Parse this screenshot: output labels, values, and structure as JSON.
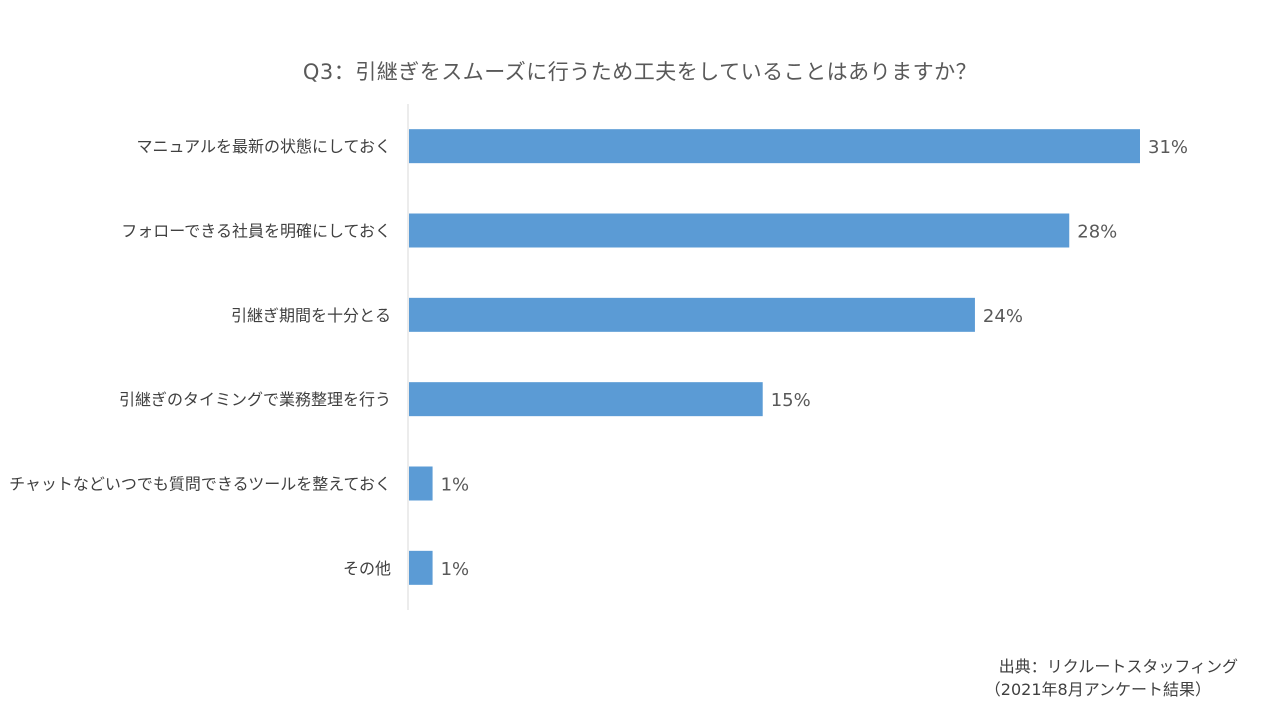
{
  "chart_data": {
    "type": "bar",
    "orientation": "horizontal",
    "title": "Q3：引継ぎをスムーズに行うため工夫をしていることはありますか？",
    "categories": [
      "マニュアルを最新の状態にしておく",
      "フォローできる社員を明確にしておく",
      "引継ぎ期間を十分とる",
      "引継ぎのタイミングで業務整理を行う",
      "チャットなどいつでも質問できるツールを整えておく",
      "その他"
    ],
    "values": [
      31,
      28,
      24,
      15,
      1,
      1
    ],
    "data_labels": [
      "31%",
      "28%",
      "24%",
      "15%",
      "1%",
      "1%"
    ],
    "unit": "%",
    "xlim": [
      0,
      31
    ],
    "grid": false,
    "bar_color": "#5b9bd5",
    "axis_color": "#d9d9d9"
  },
  "source": {
    "line1": "出典：リクルートスタッフィング",
    "line2": "（2021年8月アンケート結果）"
  }
}
